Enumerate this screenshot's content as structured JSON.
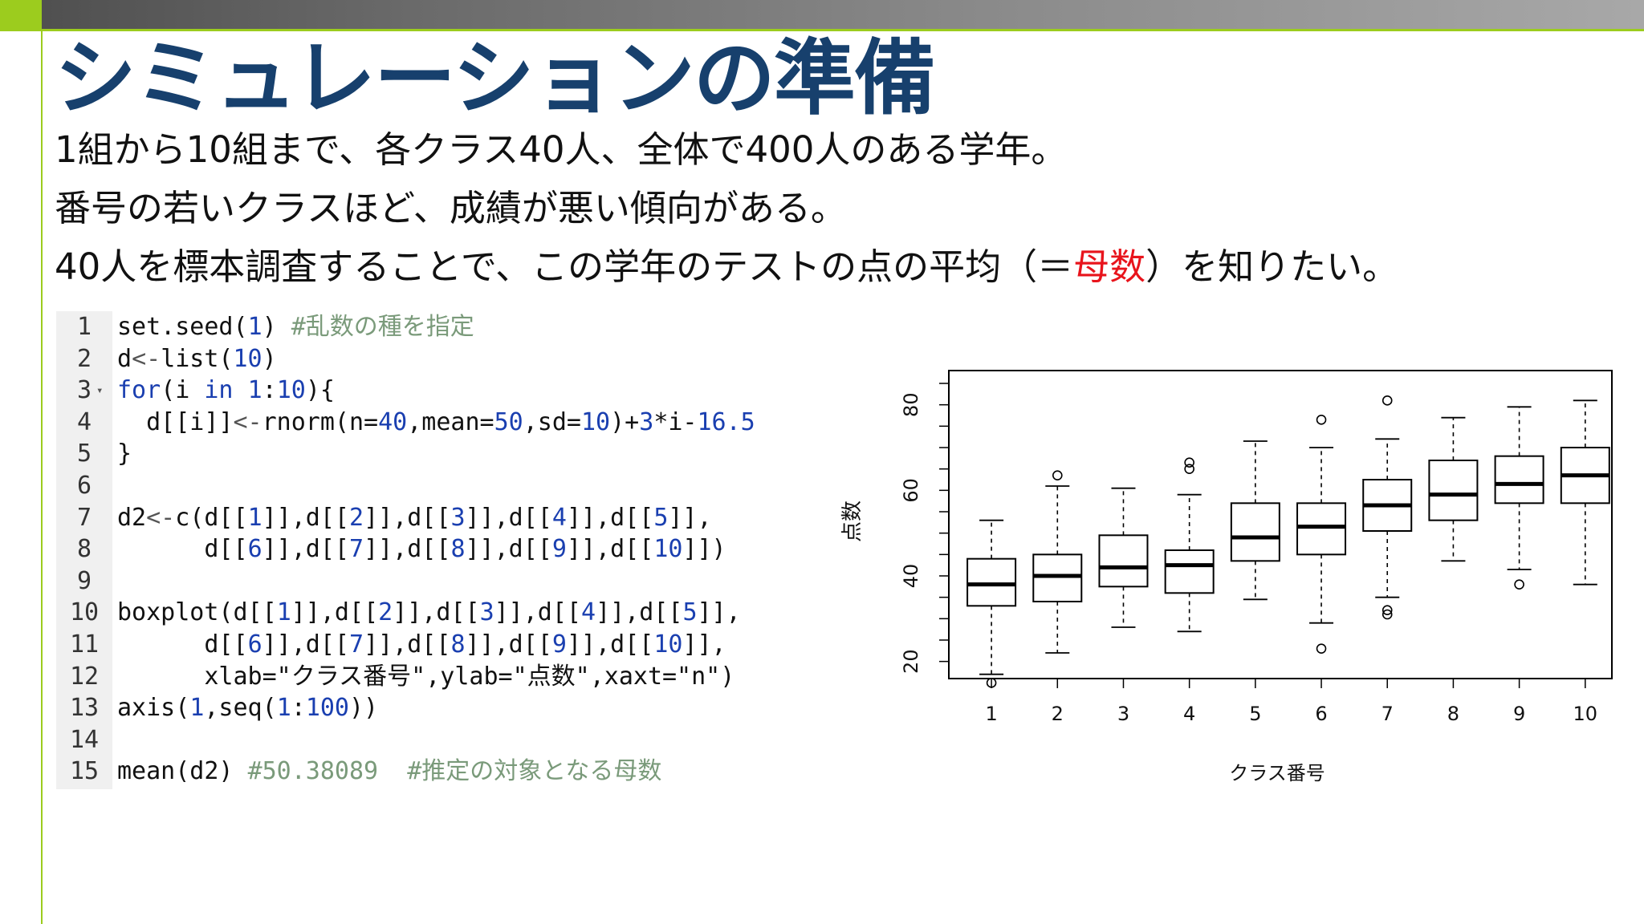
{
  "slide": {
    "title": "シミュレーションの準備",
    "lines": [
      "1組から10組まで、各クラス40人、全体で400人のある学年。",
      "番号の若いクラスほど、成績が悪い傾向がある。"
    ],
    "line3_before": "40人を標本調査することで、この学年のテストの点の平均（＝",
    "line3_highlight": "母数",
    "line3_after": "）を知りたい。",
    "highlight_color": "#e8141c",
    "title_color": "#17406d",
    "accent_color": "#9ccc1e"
  },
  "code": {
    "lines": [
      {
        "n": "1",
        "tokens": [
          {
            "t": "set.seed(",
            "c": "code-text"
          },
          {
            "t": "1",
            "c": "num"
          },
          {
            "t": ") ",
            "c": "code-text"
          },
          {
            "t": "#乱数の種を指定",
            "c": "cm"
          }
        ]
      },
      {
        "n": "2",
        "tokens": [
          {
            "t": "d",
            "c": "code-text"
          },
          {
            "t": "<-",
            "c": "op"
          },
          {
            "t": "list(",
            "c": "code-text"
          },
          {
            "t": "10",
            "c": "num"
          },
          {
            "t": ")",
            "c": "code-text"
          }
        ]
      },
      {
        "n": "3",
        "fold": true,
        "tokens": [
          {
            "t": "for",
            "c": "kw"
          },
          {
            "t": "(i ",
            "c": "code-text"
          },
          {
            "t": "in",
            "c": "kw"
          },
          {
            "t": " ",
            "c": "code-text"
          },
          {
            "t": "1",
            "c": "num"
          },
          {
            "t": ":",
            "c": "code-text"
          },
          {
            "t": "10",
            "c": "num"
          },
          {
            "t": "){",
            "c": "code-text"
          }
        ]
      },
      {
        "n": "4",
        "tokens": [
          {
            "t": "  d[[i]]",
            "c": "code-text"
          },
          {
            "t": "<-",
            "c": "op"
          },
          {
            "t": "rnorm(n=",
            "c": "code-text"
          },
          {
            "t": "40",
            "c": "num"
          },
          {
            "t": ",mean=",
            "c": "code-text"
          },
          {
            "t": "50",
            "c": "num"
          },
          {
            "t": ",sd=",
            "c": "code-text"
          },
          {
            "t": "10",
            "c": "num"
          },
          {
            "t": ")+",
            "c": "code-text"
          },
          {
            "t": "3",
            "c": "num"
          },
          {
            "t": "*i-",
            "c": "code-text"
          },
          {
            "t": "16.5",
            "c": "num"
          }
        ]
      },
      {
        "n": "5",
        "tokens": [
          {
            "t": "}",
            "c": "code-text"
          }
        ]
      },
      {
        "n": "6",
        "tokens": []
      },
      {
        "n": "7",
        "tokens": [
          {
            "t": "d2",
            "c": "code-text"
          },
          {
            "t": "<-",
            "c": "op"
          },
          {
            "t": "c(d[[",
            "c": "code-text"
          },
          {
            "t": "1",
            "c": "num"
          },
          {
            "t": "]],d[[",
            "c": "code-text"
          },
          {
            "t": "2",
            "c": "num"
          },
          {
            "t": "]],d[[",
            "c": "code-text"
          },
          {
            "t": "3",
            "c": "num"
          },
          {
            "t": "]],d[[",
            "c": "code-text"
          },
          {
            "t": "4",
            "c": "num"
          },
          {
            "t": "]],d[[",
            "c": "code-text"
          },
          {
            "t": "5",
            "c": "num"
          },
          {
            "t": "]],",
            "c": "code-text"
          }
        ]
      },
      {
        "n": "8",
        "tokens": [
          {
            "t": "      d[[",
            "c": "code-text"
          },
          {
            "t": "6",
            "c": "num"
          },
          {
            "t": "]],d[[",
            "c": "code-text"
          },
          {
            "t": "7",
            "c": "num"
          },
          {
            "t": "]],d[[",
            "c": "code-text"
          },
          {
            "t": "8",
            "c": "num"
          },
          {
            "t": "]],d[[",
            "c": "code-text"
          },
          {
            "t": "9",
            "c": "num"
          },
          {
            "t": "]],d[[",
            "c": "code-text"
          },
          {
            "t": "10",
            "c": "num"
          },
          {
            "t": "]])",
            "c": "code-text"
          }
        ]
      },
      {
        "n": "9",
        "tokens": []
      },
      {
        "n": "10",
        "tokens": [
          {
            "t": "boxplot(d[[",
            "c": "code-text"
          },
          {
            "t": "1",
            "c": "num"
          },
          {
            "t": "]],d[[",
            "c": "code-text"
          },
          {
            "t": "2",
            "c": "num"
          },
          {
            "t": "]],d[[",
            "c": "code-text"
          },
          {
            "t": "3",
            "c": "num"
          },
          {
            "t": "]],d[[",
            "c": "code-text"
          },
          {
            "t": "4",
            "c": "num"
          },
          {
            "t": "]],d[[",
            "c": "code-text"
          },
          {
            "t": "5",
            "c": "num"
          },
          {
            "t": "]],",
            "c": "code-text"
          }
        ]
      },
      {
        "n": "11",
        "tokens": [
          {
            "t": "      d[[",
            "c": "code-text"
          },
          {
            "t": "6",
            "c": "num"
          },
          {
            "t": "]],d[[",
            "c": "code-text"
          },
          {
            "t": "7",
            "c": "num"
          },
          {
            "t": "]],d[[",
            "c": "code-text"
          },
          {
            "t": "8",
            "c": "num"
          },
          {
            "t": "]],d[[",
            "c": "code-text"
          },
          {
            "t": "9",
            "c": "num"
          },
          {
            "t": "]],d[[",
            "c": "code-text"
          },
          {
            "t": "10",
            "c": "num"
          },
          {
            "t": "]],",
            "c": "code-text"
          }
        ]
      },
      {
        "n": "12",
        "tokens": [
          {
            "t": "      xlab=\"クラス番号\",ylab=\"点数\",xaxt=\"n\")",
            "c": "code-text"
          }
        ]
      },
      {
        "n": "13",
        "tokens": [
          {
            "t": "axis(",
            "c": "code-text"
          },
          {
            "t": "1",
            "c": "num"
          },
          {
            "t": ",seq(",
            "c": "code-text"
          },
          {
            "t": "1",
            "c": "num"
          },
          {
            "t": ":",
            "c": "code-text"
          },
          {
            "t": "100",
            "c": "num"
          },
          {
            "t": "))",
            "c": "code-text"
          }
        ]
      },
      {
        "n": "14",
        "tokens": []
      },
      {
        "n": "15",
        "tokens": [
          {
            "t": "mean(d2) ",
            "c": "code-text"
          },
          {
            "t": "#50.38089  #推定の対象となる母数",
            "c": "cm"
          }
        ]
      }
    ]
  },
  "chart_data": {
    "type": "boxplot",
    "categories": [
      "1",
      "2",
      "3",
      "4",
      "5",
      "6",
      "7",
      "8",
      "9",
      "10"
    ],
    "xlabel": "クラス番号",
    "ylabel": "点数",
    "yticks": [
      "20",
      "40",
      "60",
      "80"
    ],
    "ylim": [
      16,
      88
    ],
    "boxes": [
      {
        "min": 17,
        "q1": 33,
        "median": 38,
        "q3": 44,
        "max": 53,
        "outliers": [
          15
        ]
      },
      {
        "min": 22,
        "q1": 34,
        "median": 40,
        "q3": 45,
        "max": 61,
        "outliers": [
          63.5
        ]
      },
      {
        "min": 28,
        "q1": 37.5,
        "median": 42,
        "q3": 49.5,
        "max": 60.5,
        "outliers": []
      },
      {
        "min": 27,
        "q1": 36,
        "median": 42.5,
        "q3": 46,
        "max": 59,
        "outliers": [
          65,
          66.5
        ]
      },
      {
        "min": 34.5,
        "q1": 43.5,
        "median": 49,
        "q3": 57,
        "max": 71.5,
        "outliers": []
      },
      {
        "min": 29,
        "q1": 45,
        "median": 51.5,
        "q3": 57,
        "max": 70,
        "outliers": [
          23,
          76.5
        ]
      },
      {
        "min": 35,
        "q1": 50.5,
        "median": 56.5,
        "q3": 62.5,
        "max": 72,
        "outliers": [
          31,
          32,
          81
        ]
      },
      {
        "min": 43.5,
        "q1": 53,
        "median": 59,
        "q3": 67,
        "max": 77,
        "outliers": []
      },
      {
        "min": 41.5,
        "q1": 57,
        "median": 61.5,
        "q3": 68,
        "max": 79.5,
        "outliers": [
          38
        ]
      },
      {
        "min": 38,
        "q1": 57,
        "median": 63.5,
        "q3": 70,
        "max": 81,
        "outliers": []
      }
    ]
  }
}
